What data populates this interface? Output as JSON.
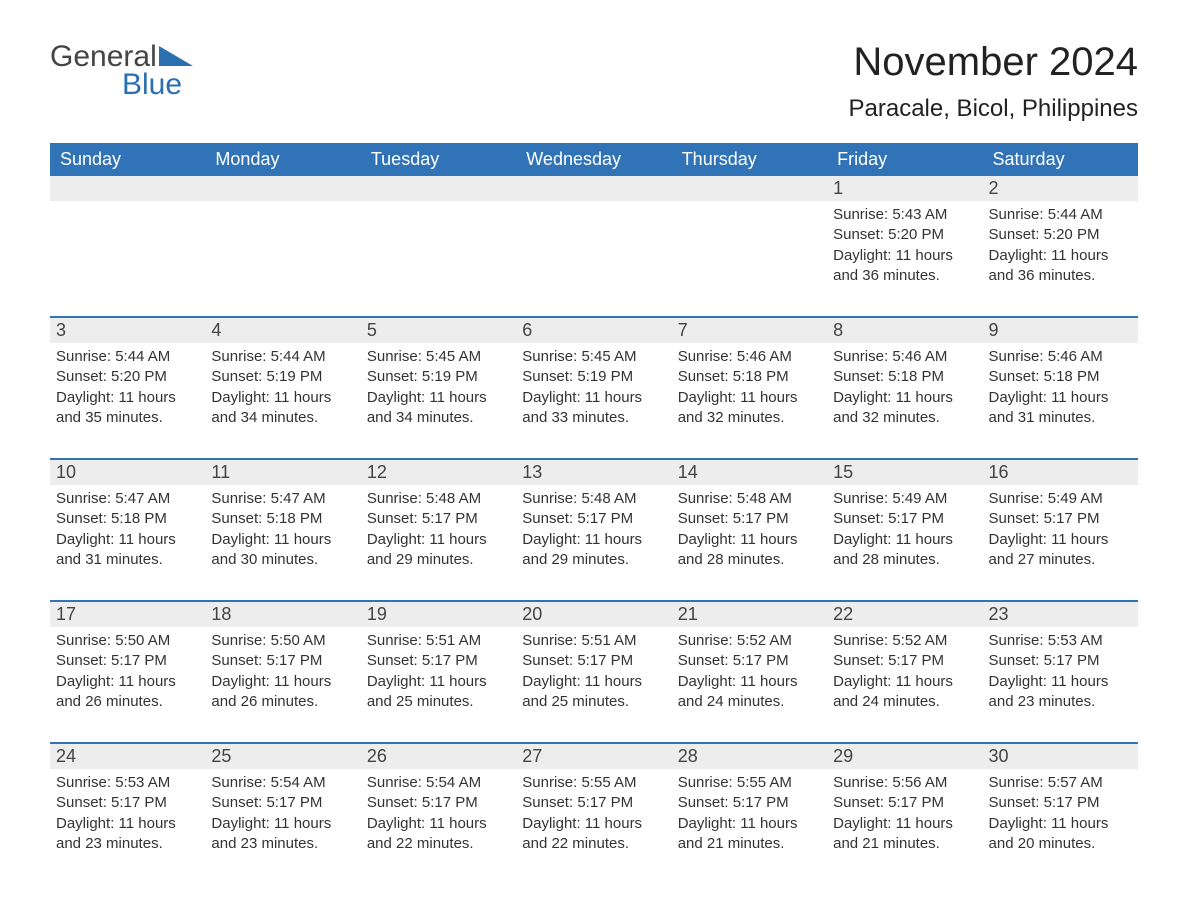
{
  "logo": {
    "word1": "General",
    "word2": "Blue"
  },
  "title": "November 2024",
  "location": "Paracale, Bicol, Philippines",
  "colors": {
    "brand": "#3173b7",
    "header_text": "#ffffff",
    "daynum_bg": "#ededed",
    "text": "#333333",
    "background": "#ffffff"
  },
  "day_headers": [
    "Sunday",
    "Monday",
    "Tuesday",
    "Wednesday",
    "Thursday",
    "Friday",
    "Saturday"
  ],
  "weeks": [
    [
      null,
      null,
      null,
      null,
      null,
      {
        "n": "1",
        "sunrise": "5:43 AM",
        "sunset": "5:20 PM",
        "daylight": "11 hours and 36 minutes."
      },
      {
        "n": "2",
        "sunrise": "5:44 AM",
        "sunset": "5:20 PM",
        "daylight": "11 hours and 36 minutes."
      }
    ],
    [
      {
        "n": "3",
        "sunrise": "5:44 AM",
        "sunset": "5:20 PM",
        "daylight": "11 hours and 35 minutes."
      },
      {
        "n": "4",
        "sunrise": "5:44 AM",
        "sunset": "5:19 PM",
        "daylight": "11 hours and 34 minutes."
      },
      {
        "n": "5",
        "sunrise": "5:45 AM",
        "sunset": "5:19 PM",
        "daylight": "11 hours and 34 minutes."
      },
      {
        "n": "6",
        "sunrise": "5:45 AM",
        "sunset": "5:19 PM",
        "daylight": "11 hours and 33 minutes."
      },
      {
        "n": "7",
        "sunrise": "5:46 AM",
        "sunset": "5:18 PM",
        "daylight": "11 hours and 32 minutes."
      },
      {
        "n": "8",
        "sunrise": "5:46 AM",
        "sunset": "5:18 PM",
        "daylight": "11 hours and 32 minutes."
      },
      {
        "n": "9",
        "sunrise": "5:46 AM",
        "sunset": "5:18 PM",
        "daylight": "11 hours and 31 minutes."
      }
    ],
    [
      {
        "n": "10",
        "sunrise": "5:47 AM",
        "sunset": "5:18 PM",
        "daylight": "11 hours and 31 minutes."
      },
      {
        "n": "11",
        "sunrise": "5:47 AM",
        "sunset": "5:18 PM",
        "daylight": "11 hours and 30 minutes."
      },
      {
        "n": "12",
        "sunrise": "5:48 AM",
        "sunset": "5:17 PM",
        "daylight": "11 hours and 29 minutes."
      },
      {
        "n": "13",
        "sunrise": "5:48 AM",
        "sunset": "5:17 PM",
        "daylight": "11 hours and 29 minutes."
      },
      {
        "n": "14",
        "sunrise": "5:48 AM",
        "sunset": "5:17 PM",
        "daylight": "11 hours and 28 minutes."
      },
      {
        "n": "15",
        "sunrise": "5:49 AM",
        "sunset": "5:17 PM",
        "daylight": "11 hours and 28 minutes."
      },
      {
        "n": "16",
        "sunrise": "5:49 AM",
        "sunset": "5:17 PM",
        "daylight": "11 hours and 27 minutes."
      }
    ],
    [
      {
        "n": "17",
        "sunrise": "5:50 AM",
        "sunset": "5:17 PM",
        "daylight": "11 hours and 26 minutes."
      },
      {
        "n": "18",
        "sunrise": "5:50 AM",
        "sunset": "5:17 PM",
        "daylight": "11 hours and 26 minutes."
      },
      {
        "n": "19",
        "sunrise": "5:51 AM",
        "sunset": "5:17 PM",
        "daylight": "11 hours and 25 minutes."
      },
      {
        "n": "20",
        "sunrise": "5:51 AM",
        "sunset": "5:17 PM",
        "daylight": "11 hours and 25 minutes."
      },
      {
        "n": "21",
        "sunrise": "5:52 AM",
        "sunset": "5:17 PM",
        "daylight": "11 hours and 24 minutes."
      },
      {
        "n": "22",
        "sunrise": "5:52 AM",
        "sunset": "5:17 PM",
        "daylight": "11 hours and 24 minutes."
      },
      {
        "n": "23",
        "sunrise": "5:53 AM",
        "sunset": "5:17 PM",
        "daylight": "11 hours and 23 minutes."
      }
    ],
    [
      {
        "n": "24",
        "sunrise": "5:53 AM",
        "sunset": "5:17 PM",
        "daylight": "11 hours and 23 minutes."
      },
      {
        "n": "25",
        "sunrise": "5:54 AM",
        "sunset": "5:17 PM",
        "daylight": "11 hours and 23 minutes."
      },
      {
        "n": "26",
        "sunrise": "5:54 AM",
        "sunset": "5:17 PM",
        "daylight": "11 hours and 22 minutes."
      },
      {
        "n": "27",
        "sunrise": "5:55 AM",
        "sunset": "5:17 PM",
        "daylight": "11 hours and 22 minutes."
      },
      {
        "n": "28",
        "sunrise": "5:55 AM",
        "sunset": "5:17 PM",
        "daylight": "11 hours and 21 minutes."
      },
      {
        "n": "29",
        "sunrise": "5:56 AM",
        "sunset": "5:17 PM",
        "daylight": "11 hours and 21 minutes."
      },
      {
        "n": "30",
        "sunrise": "5:57 AM",
        "sunset": "5:17 PM",
        "daylight": "11 hours and 20 minutes."
      }
    ]
  ],
  "labels": {
    "sunrise": "Sunrise: ",
    "sunset": "Sunset: ",
    "daylight": "Daylight: "
  }
}
